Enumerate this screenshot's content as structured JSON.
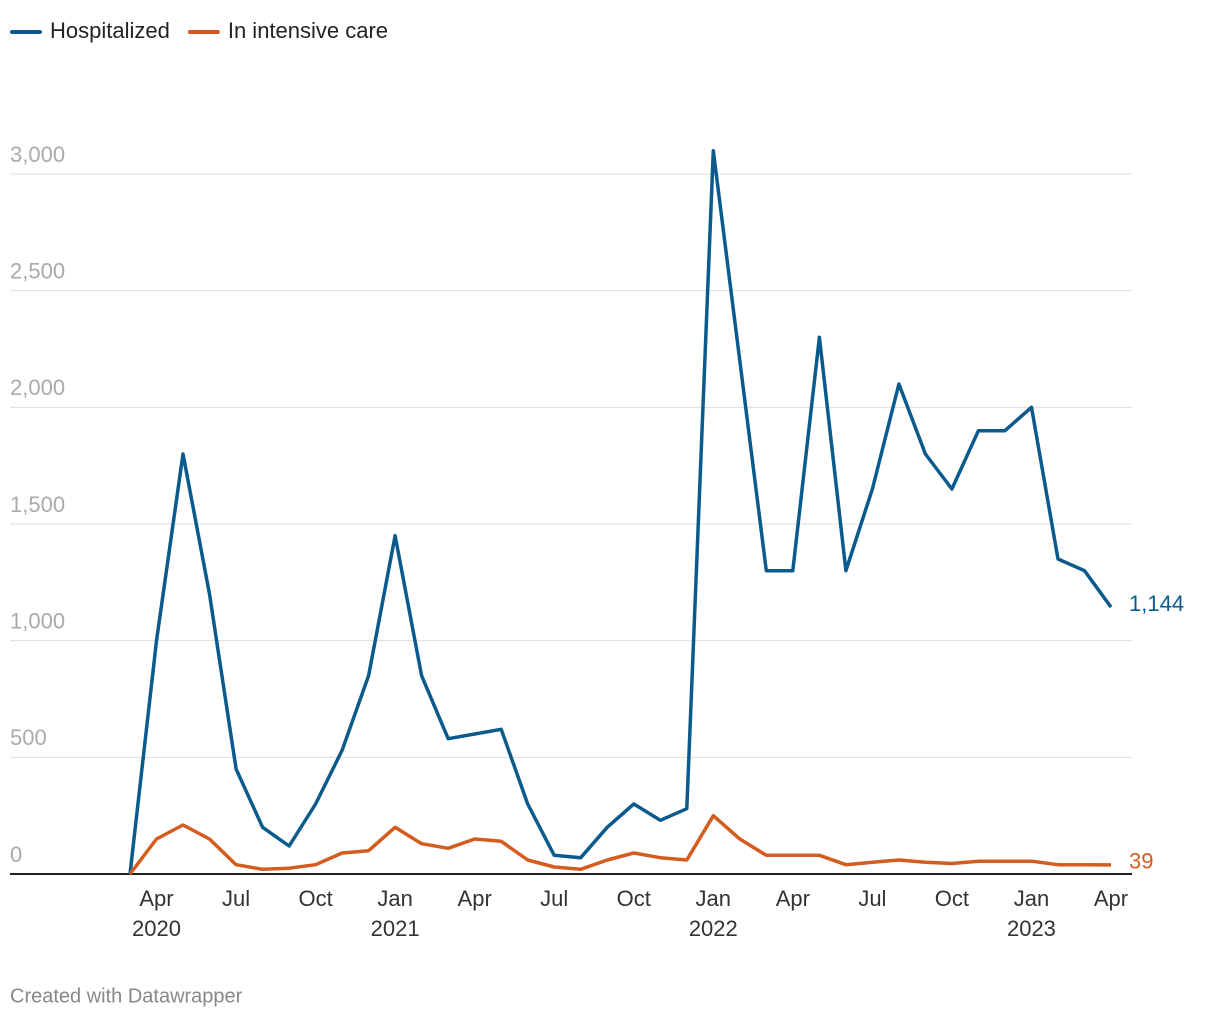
{
  "chart_data": {
    "type": "line",
    "legend": "top-left",
    "grid": true,
    "footer": "Created with Datawrapper",
    "x": [
      "2020-03",
      "2020-04",
      "2020-05",
      "2020-06",
      "2020-07",
      "2020-08",
      "2020-09",
      "2020-10",
      "2020-11",
      "2020-12",
      "2021-01",
      "2021-02",
      "2021-03",
      "2021-04",
      "2021-05",
      "2021-06",
      "2021-07",
      "2021-08",
      "2021-09",
      "2021-10",
      "2021-11",
      "2021-12",
      "2022-01",
      "2022-02",
      "2022-03",
      "2022-04",
      "2022-05",
      "2022-06",
      "2022-07",
      "2022-08",
      "2022-09",
      "2022-10",
      "2022-11",
      "2022-12",
      "2023-01",
      "2023-02",
      "2023-03",
      "2023-04"
    ],
    "series": [
      {
        "name": "Hospitalized",
        "color": "#0b5a8c",
        "values": [
          0,
          1000,
          1800,
          1200,
          450,
          200,
          120,
          300,
          530,
          850,
          1450,
          850,
          580,
          600,
          620,
          300,
          80,
          70,
          200,
          300,
          230,
          280,
          3100,
          2200,
          1300,
          1300,
          2300,
          1300,
          1650,
          2100,
          1800,
          1650,
          1900,
          1900,
          2000,
          1350,
          1300,
          1144
        ],
        "value_labels": [
          null,
          null,
          null,
          null,
          null,
          null,
          null,
          null,
          null,
          null,
          null,
          null,
          null,
          null,
          null,
          null,
          null,
          null,
          null,
          null,
          null,
          null,
          null,
          null,
          null,
          null,
          null,
          null,
          null,
          null,
          null,
          null,
          null,
          null,
          null,
          null,
          null,
          "1,144"
        ]
      },
      {
        "name": "In intensive care",
        "color": "#d35c1e",
        "values": [
          0,
          150,
          210,
          150,
          40,
          20,
          25,
          40,
          90,
          100,
          200,
          130,
          110,
          150,
          140,
          60,
          30,
          20,
          60,
          90,
          70,
          60,
          250,
          150,
          80,
          80,
          80,
          40,
          50,
          60,
          50,
          45,
          55,
          55,
          55,
          40,
          40,
          39
        ],
        "value_labels": [
          null,
          null,
          null,
          null,
          null,
          null,
          null,
          null,
          null,
          null,
          null,
          null,
          null,
          null,
          null,
          null,
          null,
          null,
          null,
          null,
          null,
          null,
          null,
          null,
          null,
          null,
          null,
          null,
          null,
          null,
          null,
          null,
          null,
          null,
          null,
          null,
          null,
          "39"
        ]
      }
    ],
    "xlim": [
      "2020-03",
      "2023-04"
    ],
    "xticks": [
      {
        "value": "2020-04",
        "label": "Apr",
        "year": "2020"
      },
      {
        "value": "2020-07",
        "label": "Jul"
      },
      {
        "value": "2020-10",
        "label": "Oct"
      },
      {
        "value": "2021-01",
        "label": "Jan",
        "year": "2021"
      },
      {
        "value": "2021-04",
        "label": "Apr"
      },
      {
        "value": "2021-07",
        "label": "Jul"
      },
      {
        "value": "2021-10",
        "label": "Oct"
      },
      {
        "value": "2022-01",
        "label": "Jan",
        "year": "2022"
      },
      {
        "value": "2022-04",
        "label": "Apr"
      },
      {
        "value": "2022-07",
        "label": "Jul"
      },
      {
        "value": "2022-10",
        "label": "Oct"
      },
      {
        "value": "2023-01",
        "label": "Jan",
        "year": "2023"
      },
      {
        "value": "2023-04",
        "label": "Apr"
      }
    ],
    "ylim": [
      0,
      3000
    ],
    "yticks": [
      0,
      500,
      {
        "value": 1000,
        "label": "1,000"
      },
      {
        "value": 1500,
        "label": "1,500"
      },
      {
        "value": 2000,
        "label": "2,000"
      },
      {
        "value": 2500,
        "label": "2,500"
      },
      {
        "value": 3000,
        "label": "3,000"
      }
    ]
  }
}
